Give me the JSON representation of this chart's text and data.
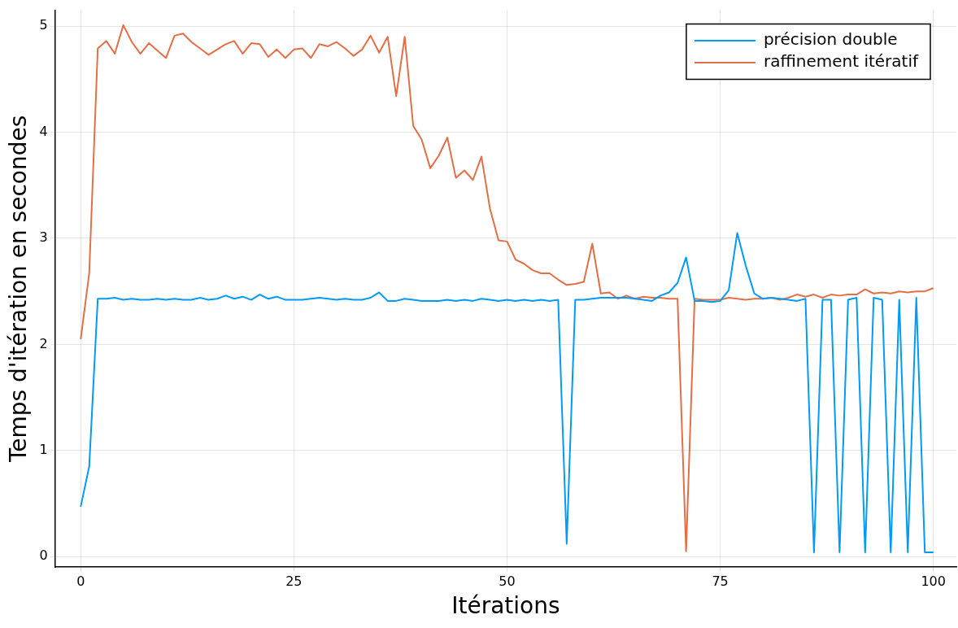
{
  "chart_data": {
    "type": "line",
    "xlabel": "Itérations",
    "ylabel": "Temps d'itération en secondes",
    "x": [
      0,
      1,
      2,
      3,
      4,
      5,
      6,
      7,
      8,
      9,
      10,
      11,
      12,
      13,
      14,
      15,
      16,
      17,
      18,
      19,
      20,
      21,
      22,
      23,
      24,
      25,
      26,
      27,
      28,
      29,
      30,
      31,
      32,
      33,
      34,
      35,
      36,
      37,
      38,
      39,
      40,
      41,
      42,
      43,
      44,
      45,
      46,
      47,
      48,
      49,
      50,
      51,
      52,
      53,
      54,
      55,
      56,
      57,
      58,
      59,
      60,
      61,
      62,
      63,
      64,
      65,
      66,
      67,
      68,
      69,
      70,
      71,
      72,
      73,
      74,
      75,
      76,
      77,
      78,
      79,
      80,
      81,
      82,
      83,
      84,
      85,
      86,
      87,
      88,
      89,
      90,
      91,
      92,
      93,
      94,
      95,
      96,
      97,
      98,
      99,
      100
    ],
    "series": [
      {
        "name": "précision double",
        "color": "#009af9",
        "values": [
          0.47,
          0.85,
          2.43,
          2.43,
          2.44,
          2.42,
          2.43,
          2.42,
          2.42,
          2.43,
          2.42,
          2.43,
          2.42,
          2.42,
          2.44,
          2.42,
          2.43,
          2.46,
          2.43,
          2.45,
          2.42,
          2.47,
          2.43,
          2.45,
          2.42,
          2.42,
          2.42,
          2.43,
          2.44,
          2.43,
          2.42,
          2.43,
          2.42,
          2.42,
          2.44,
          2.49,
          2.41,
          2.41,
          2.43,
          2.42,
          2.41,
          2.41,
          2.41,
          2.42,
          2.41,
          2.42,
          2.41,
          2.43,
          2.42,
          2.41,
          2.42,
          2.41,
          2.42,
          2.41,
          2.42,
          2.41,
          2.42,
          0.12,
          2.42,
          2.42,
          2.43,
          2.44,
          2.44,
          2.44,
          2.44,
          2.43,
          2.42,
          2.41,
          2.46,
          2.49,
          2.58,
          2.82,
          2.41,
          2.41,
          2.4,
          2.41,
          2.51,
          3.05,
          2.74,
          2.48,
          2.43,
          2.44,
          2.43,
          2.42,
          2.41,
          2.43,
          0.04,
          2.42,
          2.42,
          0.04,
          2.42,
          2.44,
          0.04,
          2.44,
          2.42,
          0.04,
          2.42,
          0.04,
          2.44,
          0.04,
          0.04
        ]
      },
      {
        "name": "raffinement itératif",
        "color": "#e26f46",
        "values": [
          2.05,
          2.67,
          4.79,
          4.86,
          4.74,
          5.01,
          4.85,
          4.74,
          4.84,
          4.77,
          4.7,
          4.91,
          4.93,
          4.85,
          4.79,
          4.73,
          4.78,
          4.83,
          4.86,
          4.74,
          4.84,
          4.83,
          4.71,
          4.78,
          4.7,
          4.78,
          4.79,
          4.7,
          4.83,
          4.81,
          4.85,
          4.79,
          4.72,
          4.78,
          4.91,
          4.75,
          4.9,
          4.34,
          4.9,
          4.06,
          3.93,
          3.66,
          3.78,
          3.95,
          3.57,
          3.64,
          3.55,
          3.77,
          3.28,
          2.98,
          2.97,
          2.8,
          2.76,
          2.7,
          2.67,
          2.67,
          2.61,
          2.56,
          2.57,
          2.59,
          2.95,
          2.48,
          2.49,
          2.43,
          2.46,
          2.43,
          2.45,
          2.44,
          2.44,
          2.43,
          2.43,
          0.05,
          2.43,
          2.42,
          2.42,
          2.42,
          2.44,
          2.43,
          2.42,
          2.43,
          2.43,
          2.44,
          2.42,
          2.44,
          2.47,
          2.45,
          2.47,
          2.44,
          2.47,
          2.46,
          2.47,
          2.47,
          2.52,
          2.48,
          2.49,
          2.48,
          2.5,
          2.49,
          2.5,
          2.5,
          2.53
        ]
      }
    ],
    "xlim": [
      -3,
      102.7
    ],
    "ylim": [
      -0.1,
      5.15
    ],
    "xticks": [
      0,
      25,
      50,
      75,
      100
    ],
    "yticks": [
      0,
      1,
      2,
      3,
      4,
      5
    ],
    "grid": true,
    "legend": "top right",
    "marker": "none",
    "line_style": "solid"
  }
}
